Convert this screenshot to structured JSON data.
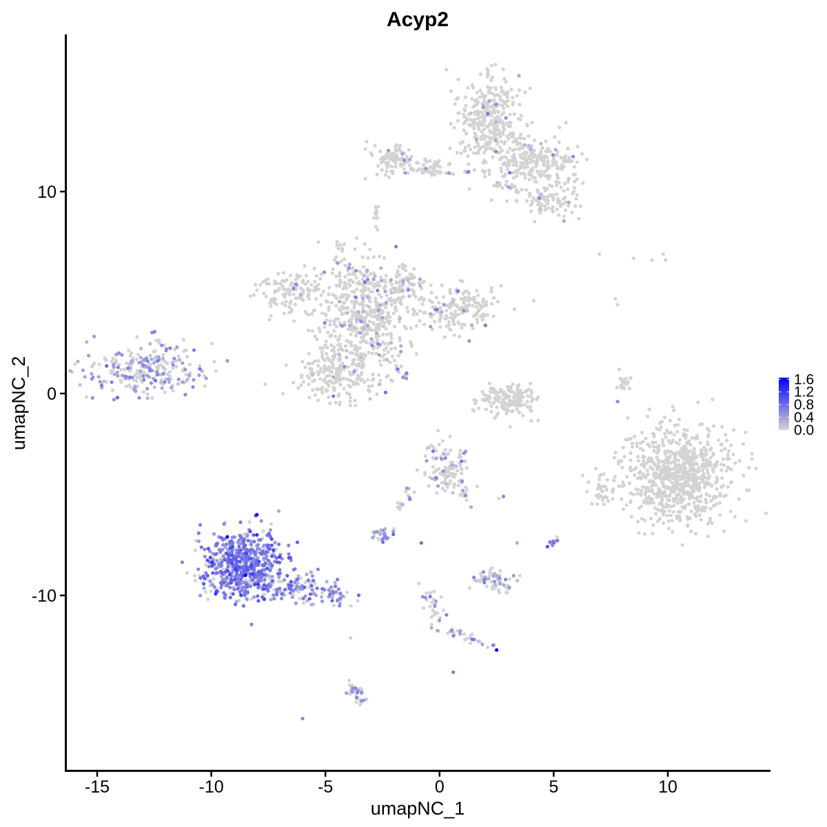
{
  "chart_data": {
    "type": "scatter",
    "title": "Acyp2",
    "xlabel": "umapNC_1",
    "ylabel": "umapNC_2",
    "xlim": [
      -16.3,
      14.4
    ],
    "ylim": [
      -18.6,
      17.8
    ],
    "xticks": [
      -15,
      -10,
      -5,
      0,
      5,
      10
    ],
    "xtick_labels": [
      "-15",
      "-10",
      "-5",
      "0",
      "5",
      "10"
    ],
    "yticks": [
      -10,
      0,
      10
    ],
    "ytick_labels": [
      "-10",
      "0",
      "10"
    ],
    "grid": false,
    "legend_position": "right",
    "colors": {
      "low": "#d3d3d3",
      "high": "#0000ff",
      "background": "#ffffff"
    },
    "colorbar": {
      "min": 0.0,
      "max": 1.65,
      "ticks": [
        0.0,
        0.4,
        0.8,
        1.2,
        1.6
      ],
      "tick_labels": [
        "0.0",
        "0.4",
        "0.8",
        "1.2",
        "1.6"
      ]
    },
    "clusters": [
      {
        "center": [
          -12.8,
          1.2
        ],
        "spread": [
          1.7,
          0.8
        ],
        "n": 260,
        "expr": 0.45,
        "pos_frac": 0.55
      },
      {
        "center": [
          -8.6,
          -8.6
        ],
        "spread": [
          1.2,
          1.1
        ],
        "n": 620,
        "expr": 0.65,
        "pos_frac": 0.8
      },
      {
        "center": [
          -6.0,
          -9.6
        ],
        "spread": [
          1.0,
          0.45
        ],
        "n": 90,
        "expr": 0.5,
        "pos_frac": 0.65
      },
      {
        "center": [
          -4.7,
          -10.2
        ],
        "spread": [
          0.5,
          0.3
        ],
        "n": 25,
        "expr": 0.45,
        "pos_frac": 0.6
      },
      {
        "center": [
          -2.5,
          -7.0
        ],
        "spread": [
          0.35,
          0.25
        ],
        "n": 30,
        "expr": 0.5,
        "pos_frac": 0.6
      },
      {
        "center": [
          0.3,
          -3.7
        ],
        "spread": [
          0.55,
          0.8
        ],
        "n": 110,
        "expr": 0.35,
        "pos_frac": 0.2
      },
      {
        "center": [
          2.4,
          -9.3
        ],
        "spread": [
          0.6,
          0.4
        ],
        "n": 60,
        "expr": 0.4,
        "pos_frac": 0.4
      },
      {
        "center": [
          5.0,
          -7.3
        ],
        "spread": [
          0.15,
          0.2
        ],
        "n": 10,
        "expr": 0.6,
        "pos_frac": 0.9
      },
      {
        "center": [
          10.5,
          -4.0
        ],
        "spread": [
          1.4,
          1.5
        ],
        "n": 800,
        "expr": 0.0,
        "pos_frac": 0.0
      },
      {
        "center": [
          7.2,
          -4.8
        ],
        "spread": [
          0.3,
          0.6
        ],
        "n": 35,
        "expr": 0.0,
        "pos_frac": 0.0
      },
      {
        "center": [
          3.0,
          -0.3
        ],
        "spread": [
          0.8,
          0.5
        ],
        "n": 160,
        "expr": 0.0,
        "pos_frac": 0.0
      },
      {
        "center": [
          8.1,
          0.5
        ],
        "spread": [
          0.2,
          0.4
        ],
        "n": 20,
        "expr": 0.3,
        "pos_frac": 0.05
      },
      {
        "center": [
          -3.2,
          4.0
        ],
        "spread": [
          1.3,
          1.8
        ],
        "n": 520,
        "expr": 0.35,
        "pos_frac": 0.1
      },
      {
        "center": [
          -6.5,
          5.1
        ],
        "spread": [
          1.0,
          0.6
        ],
        "n": 120,
        "expr": 0.3,
        "pos_frac": 0.05
      },
      {
        "center": [
          -4.6,
          1.0
        ],
        "spread": [
          1.1,
          1.0
        ],
        "n": 200,
        "expr": 0.3,
        "pos_frac": 0.05
      },
      {
        "center": [
          0.8,
          4.2
        ],
        "spread": [
          1.1,
          0.7
        ],
        "n": 170,
        "expr": 0.35,
        "pos_frac": 0.08
      },
      {
        "center": [
          -1.5,
          5.6
        ],
        "spread": [
          0.5,
          0.6
        ],
        "n": 60,
        "expr": 0.35,
        "pos_frac": 0.1
      },
      {
        "center": [
          2.2,
          13.5
        ],
        "spread": [
          0.9,
          1.4
        ],
        "n": 330,
        "expr": 0.4,
        "pos_frac": 0.04
      },
      {
        "center": [
          4.2,
          11.5
        ],
        "spread": [
          1.0,
          0.7
        ],
        "n": 230,
        "expr": 0.4,
        "pos_frac": 0.04
      },
      {
        "center": [
          4.8,
          9.5
        ],
        "spread": [
          0.8,
          0.5
        ],
        "n": 90,
        "expr": 0.4,
        "pos_frac": 0.06
      },
      {
        "center": [
          -2.0,
          11.6
        ],
        "spread": [
          0.8,
          0.45
        ],
        "n": 90,
        "expr": 0.35,
        "pos_frac": 0.04
      },
      {
        "center": [
          -0.2,
          11.2
        ],
        "spread": [
          0.9,
          0.3
        ],
        "n": 40,
        "expr": 0.35,
        "pos_frac": 0.05
      },
      {
        "center": [
          -1.4,
          4.2
        ],
        "spread": [
          0.25,
          0.25
        ],
        "n": 0,
        "expr": 0.0,
        "pos_frac": 0.0
      }
    ],
    "streams": [
      {
        "from": [
          -3.8,
          -14.5
        ],
        "to": [
          -3.4,
          -15.3
        ],
        "n": 35,
        "spread": 0.15,
        "expr": 0.4,
        "pos_frac": 0.3
      },
      {
        "from": [
          -0.6,
          -9.6
        ],
        "to": [
          0.2,
          -11.9
        ],
        "n": 30,
        "spread": 0.15,
        "expr": 0.4,
        "pos_frac": 0.4
      },
      {
        "from": [
          0.3,
          -11.7
        ],
        "to": [
          2.5,
          -12.6
        ],
        "n": 25,
        "spread": 0.12,
        "expr": 0.5,
        "pos_frac": 0.4
      },
      {
        "from": [
          -1.8,
          -5.8
        ],
        "to": [
          -1.0,
          -4.5
        ],
        "n": 14,
        "spread": 0.1,
        "expr": 0.4,
        "pos_frac": 0.6
      },
      {
        "from": [
          0.8,
          -4.2
        ],
        "to": [
          1.3,
          -5.6
        ],
        "n": 14,
        "spread": 0.1,
        "expr": 0.4,
        "pos_frac": 0.4
      },
      {
        "from": [
          -2.3,
          1.8
        ],
        "to": [
          -1.4,
          0.8
        ],
        "n": 14,
        "spread": 0.08,
        "expr": 0.4,
        "pos_frac": 0.4
      },
      {
        "from": [
          -4.4,
          7.5
        ],
        "to": [
          -4.3,
          5.0
        ],
        "n": 20,
        "spread": 0.12,
        "expr": 0.3,
        "pos_frac": 0.05
      },
      {
        "from": [
          -2.7,
          9.5
        ],
        "to": [
          -2.8,
          8.2
        ],
        "n": 10,
        "spread": 0.1,
        "expr": 0.3,
        "pos_frac": 0.0
      },
      {
        "from": [
          -0.8,
          11.1
        ],
        "to": [
          0.6,
          10.9
        ],
        "n": 14,
        "spread": 0.08,
        "expr": 0.35,
        "pos_frac": 0.1
      },
      {
        "from": [
          2.4,
          10.4
        ],
        "to": [
          3.5,
          10.0
        ],
        "n": 14,
        "spread": 0.1,
        "expr": 0.45,
        "pos_frac": 0.3
      }
    ],
    "singletons": [
      {
        "x": 7.0,
        "y": 6.9,
        "v": 0.0
      },
      {
        "x": 8.5,
        "y": 6.7,
        "v": 0.0
      },
      {
        "x": 9.3,
        "y": 6.6,
        "v": 0.0
      },
      {
        "x": 9.8,
        "y": 6.9,
        "v": 0.0
      },
      {
        "x": 9.9,
        "y": 6.6,
        "v": 0.0
      },
      {
        "x": 7.7,
        "y": 4.7,
        "v": 0.0
      },
      {
        "x": 7.8,
        "y": 4.4,
        "v": 0.0
      },
      {
        "x": 2.8,
        "y": -5.1,
        "v": 0.6
      },
      {
        "x": 2.6,
        "y": -5.2,
        "v": 0.0
      },
      {
        "x": 5.0,
        "y": -7.4,
        "v": 0.8
      },
      {
        "x": -6.0,
        "y": -16.1,
        "v": 0.6
      },
      {
        "x": 0.6,
        "y": -13.8,
        "v": 0.7
      },
      {
        "x": -3.9,
        "y": -12.1,
        "v": 0.0
      },
      {
        "x": -0.8,
        "y": -7.4,
        "v": 0.8
      },
      {
        "x": -0.9,
        "y": -9.4,
        "v": 0.0
      },
      {
        "x": 3.4,
        "y": -7.4,
        "v": 0.3
      },
      {
        "x": 2.5,
        "y": -12.7,
        "v": 1.6
      },
      {
        "x": -8.0,
        "y": -6.0,
        "v": 1.55
      },
      {
        "x": -9.3,
        "y": -7.1,
        "v": 1.6
      },
      {
        "x": -8.5,
        "y": -9.0,
        "v": 1.65
      },
      {
        "x": -8.0,
        "y": -7.0,
        "v": 1.3
      },
      {
        "x": 1.3,
        "y": 2.6,
        "v": 0.5
      },
      {
        "x": -1.6,
        "y": 0.8,
        "v": 0.5
      },
      {
        "x": 7.8,
        "y": -0.4,
        "v": 0.6
      }
    ]
  }
}
